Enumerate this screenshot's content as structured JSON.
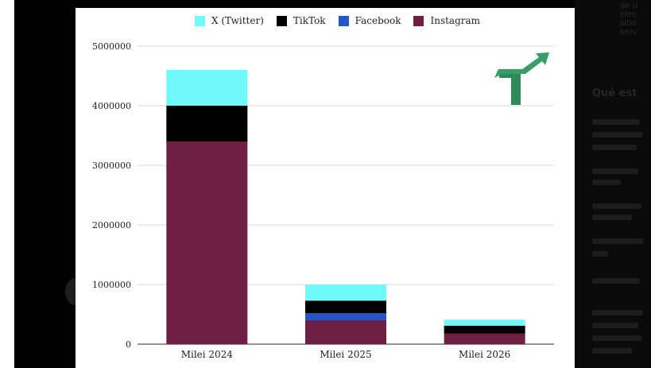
{
  "chart_data": {
    "type": "bar",
    "stacked": true,
    "categories": [
      "Milei 2024",
      "Milei 2025",
      "Milei 2026"
    ],
    "series": [
      {
        "name": "Instagram",
        "color": "#6f1e44",
        "values": [
          3400000,
          400000,
          180000
        ]
      },
      {
        "name": "Facebook",
        "color": "#2356c7",
        "values": [
          0,
          120000,
          0
        ]
      },
      {
        "name": "TikTok",
        "color": "#000000",
        "values": [
          600000,
          210000,
          130000
        ]
      },
      {
        "name": "X (Twitter)",
        "color": "#6ff9fd",
        "values": [
          600000,
          270000,
          100000
        ]
      }
    ],
    "legend_order": [
      "X (Twitter)",
      "TikTok",
      "Facebook",
      "Instagram"
    ],
    "yticks": [
      "0",
      "1000000",
      "2000000",
      "3000000",
      "4000000",
      "5000000"
    ],
    "ylim": [
      0,
      5000000
    ],
    "grid": true,
    "legend_position": "top"
  },
  "logo_icon": "green-arrow-up-right-icon"
}
